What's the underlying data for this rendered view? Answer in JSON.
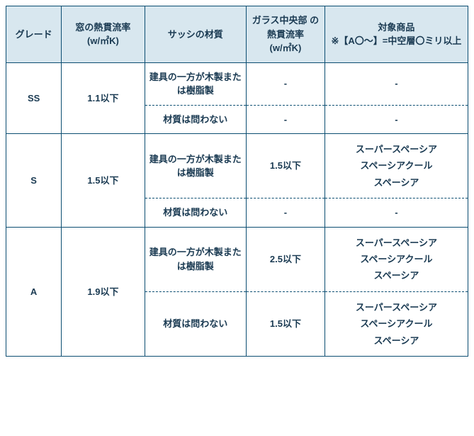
{
  "headers": {
    "grade": "グレード",
    "window_u": "窓の熱貫流率\n(w/㎡K)",
    "sash_material": "サッシの材質",
    "glass_u": "ガラス中央部 の熱貫流率\n(w/㎡K)",
    "product": "対象商品\n※【A〇〜】=中空層〇ミリ以上"
  },
  "rows": [
    {
      "grade": "SS",
      "window_u": "1.1以下",
      "sub": [
        {
          "sash": "建具の一方が木製または樹脂製",
          "glass_u": "-",
          "product": "-"
        },
        {
          "sash": "材質は問わない",
          "glass_u": "-",
          "product": "-"
        }
      ]
    },
    {
      "grade": "S",
      "window_u": "1.5以下",
      "sub": [
        {
          "sash": "建具の一方が木製または樹脂製",
          "glass_u": "1.5以下",
          "product": "スーパースペーシア\nスペーシアクール\nスペーシア"
        },
        {
          "sash": "材質は問わない",
          "glass_u": "-",
          "product": "-"
        }
      ]
    },
    {
      "grade": "A",
      "window_u": "1.9以下",
      "sub": [
        {
          "sash": "建具の一方が木製または樹脂製",
          "glass_u": "2.5以下",
          "product": "スーパースペーシア\nスペーシアクール\nスペーシア"
        },
        {
          "sash": "材質は問わない",
          "glass_u": "1.5以下",
          "product": "スーパースペーシア\nスペーシアクール\nスペーシア"
        }
      ]
    }
  ]
}
